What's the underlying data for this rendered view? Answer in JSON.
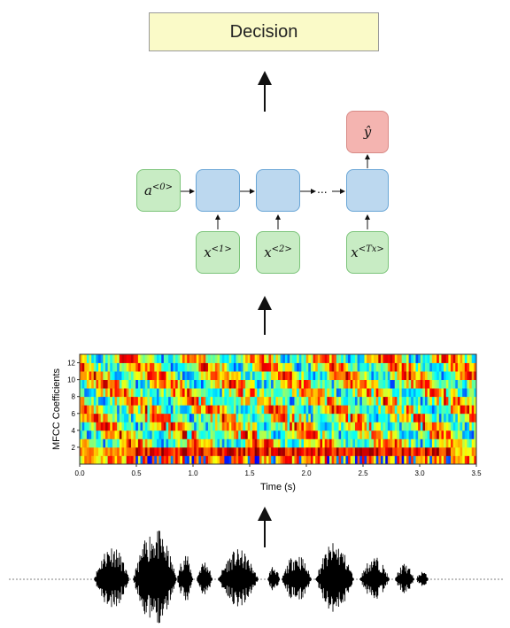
{
  "decision_label": "Decision",
  "rnn": {
    "a0": "a",
    "a0_sup": "<0>",
    "x1": "x",
    "x1_sup": "<1>",
    "x2": "x",
    "x2_sup": "<2>",
    "xT": "x",
    "xT_sup": "<Tx>",
    "yhat": "ŷ",
    "ellipsis": "..."
  },
  "chart_data": {
    "type": "heatmap",
    "title": "",
    "xlabel": "Time (s)",
    "ylabel": "MFCC Coefficients",
    "x_ticks": [
      "0.0",
      "0.5",
      "1.0",
      "1.5",
      "2.0",
      "2.5",
      "3.0",
      "3.5"
    ],
    "y_ticks": [
      "2",
      "4",
      "6",
      "8",
      "10",
      "12"
    ],
    "xlim": [
      0,
      3.5
    ],
    "ylim": [
      0,
      13
    ],
    "colormap": "jet"
  },
  "colors": {
    "green_fill": "#c8ecc4",
    "blue_fill": "#bcd8ef",
    "red_fill": "#f4b4b0",
    "decision_fill": "#fafac8"
  }
}
